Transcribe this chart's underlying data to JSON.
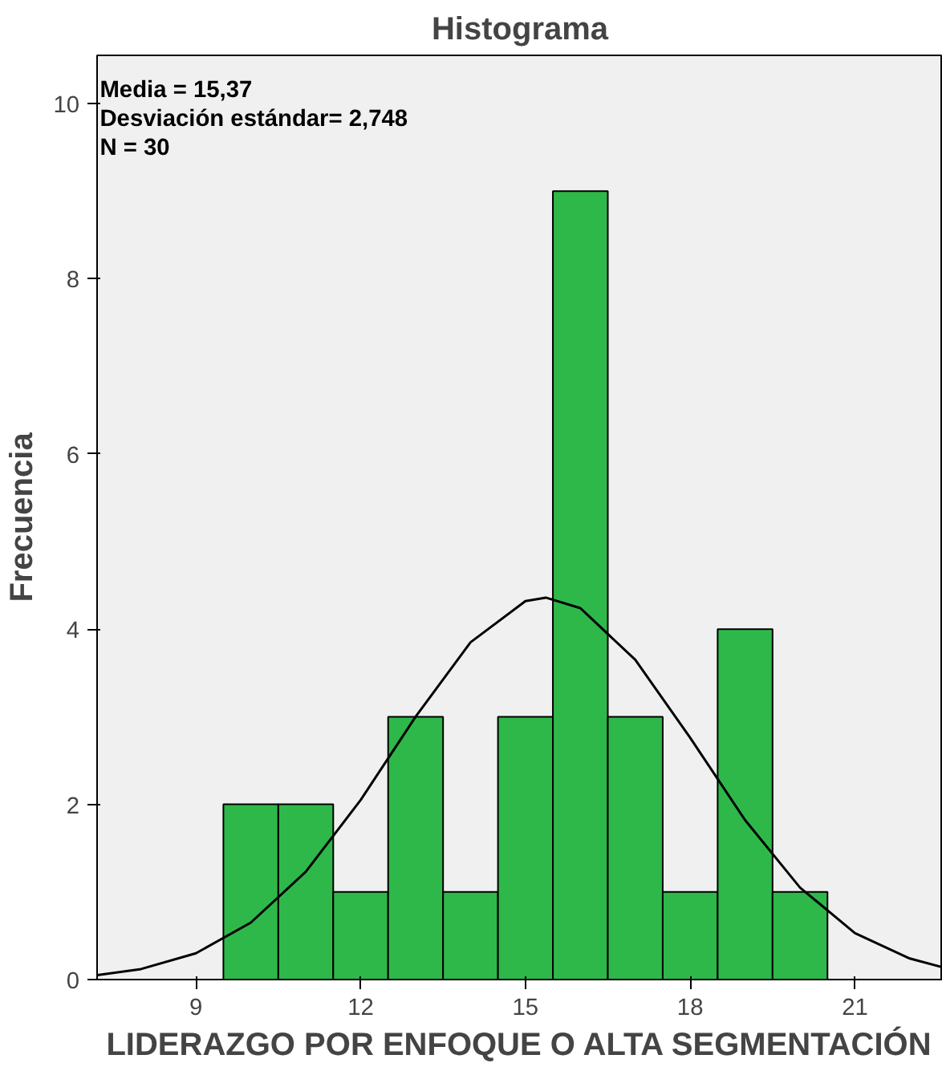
{
  "chart_data": {
    "type": "histogram",
    "title": "Histograma",
    "xlabel": "LIDERAZGO POR ENFOQUE O ALTA SEGMENTACIÓN",
    "ylabel": "Frecuencia",
    "annotations": [
      "Media = 15,37",
      "Desviación estándar= 2,748",
      "N = 30"
    ],
    "bins": [
      9.5,
      10.5,
      11.5,
      12.5,
      13.5,
      14.5,
      15.5,
      16.5,
      17.5,
      18.5,
      19.5,
      20.5
    ],
    "values": [
      2,
      2,
      1,
      3,
      1,
      3,
      9,
      3,
      1,
      4,
      1
    ],
    "color": "#2eb84a",
    "series": [
      {
        "type": "line",
        "color": "#000000",
        "x": [
          7.2,
          8,
          9,
          10,
          11,
          12,
          13,
          14,
          15,
          15.37,
          16,
          17,
          18,
          19,
          20,
          21,
          22,
          22.6
        ],
        "values": [
          0.05,
          0.12,
          0.3,
          0.65,
          1.23,
          2.05,
          3.0,
          3.85,
          4.32,
          4.36,
          4.24,
          3.65,
          2.76,
          1.82,
          1.05,
          0.53,
          0.24,
          0.14
        ]
      }
    ],
    "xlim": [
      7.2,
      22.6
    ],
    "xticks": [
      9,
      12,
      15,
      18,
      21
    ],
    "ylim": [
      0,
      10.55
    ],
    "yticks": [
      0,
      2,
      4,
      6,
      8,
      10
    ],
    "grid": false
  }
}
